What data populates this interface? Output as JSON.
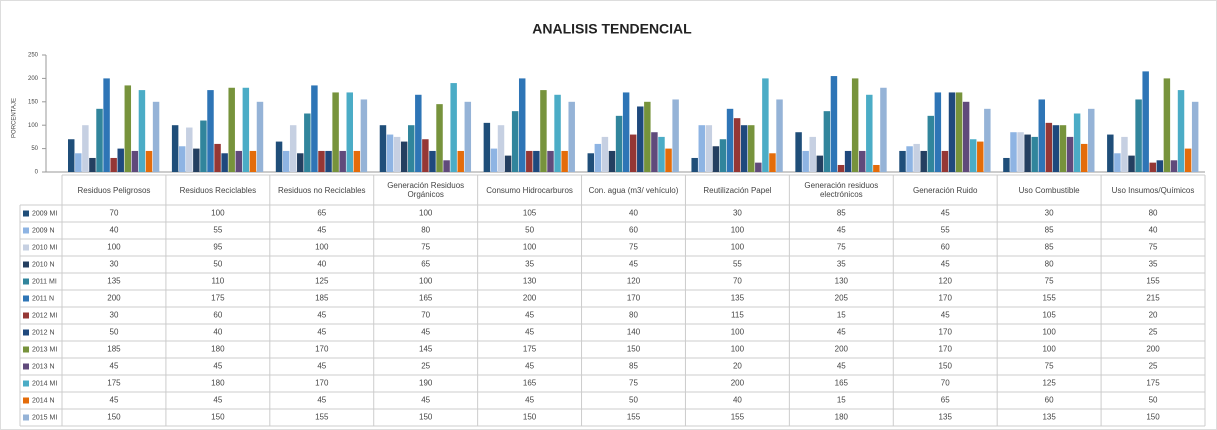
{
  "chart_data": {
    "type": "bar",
    "title": "ANALISIS TENDENCIAL",
    "y_label": "PORCENTAJE",
    "categories": [
      "Residuos Peligrosos",
      "Residuos Reciclables",
      "Residuos no Reciclables",
      "Generación Residuos Orgánicos",
      "Consumo Hidrocarburos",
      "Con. agua (m3/ vehículo)",
      "Reutilización Papel",
      "Generación residuos electrónicos",
      "Generación Ruido",
      "Uso Combustible",
      "Uso Insumos/Químicos"
    ],
    "ylim": [
      0,
      250
    ],
    "yticks": [
      0,
      50,
      100,
      150,
      200,
      250
    ],
    "grid": false,
    "series": [
      {
        "name": "2009 MI",
        "color": "#1f4e79",
        "values": [
          70,
          100,
          65,
          100,
          105,
          40,
          30,
          85,
          45,
          30,
          80
        ]
      },
      {
        "name": "2009 N",
        "color": "#8eb4e3",
        "values": [
          40,
          55,
          45,
          80,
          50,
          60,
          100,
          45,
          55,
          85,
          40
        ]
      },
      {
        "name": "2010 MI",
        "color": "#c6d0e2",
        "values": [
          100,
          95,
          100,
          75,
          100,
          75,
          100,
          75,
          60,
          85,
          75
        ]
      },
      {
        "name": "2010 N",
        "color": "#243f60",
        "values": [
          30,
          50,
          40,
          65,
          35,
          45,
          55,
          35,
          45,
          80,
          35
        ]
      },
      {
        "name": "2011 MI",
        "color": "#31859c",
        "values": [
          135,
          110,
          125,
          100,
          130,
          120,
          70,
          130,
          120,
          75,
          155
        ]
      },
      {
        "name": "2011 N",
        "color": "#2e75b6",
        "values": [
          200,
          175,
          185,
          165,
          200,
          170,
          135,
          205,
          170,
          155,
          215
        ]
      },
      {
        "name": "2012 MI",
        "color": "#953735",
        "values": [
          30,
          60,
          45,
          70,
          45,
          80,
          115,
          15,
          45,
          105,
          20
        ]
      },
      {
        "name": "2012 N",
        "color": "#1f497d",
        "values": [
          50,
          40,
          45,
          45,
          45,
          140,
          100,
          45,
          170,
          100,
          25
        ]
      },
      {
        "name": "2013 MI",
        "color": "#77933c",
        "values": [
          185,
          180,
          170,
          145,
          175,
          150,
          100,
          200,
          170,
          100,
          200
        ]
      },
      {
        "name": "2013 N",
        "color": "#604a7b",
        "values": [
          45,
          45,
          45,
          25,
          45,
          85,
          20,
          45,
          150,
          75,
          25
        ]
      },
      {
        "name": "2014 MI",
        "color": "#4bacc6",
        "values": [
          175,
          180,
          170,
          190,
          165,
          75,
          200,
          165,
          70,
          125,
          175
        ]
      },
      {
        "name": "2014 N",
        "color": "#e46c0a",
        "values": [
          45,
          45,
          45,
          45,
          45,
          50,
          40,
          15,
          65,
          60,
          50
        ]
      },
      {
        "name": "2015 MI",
        "color": "#95b3d7",
        "values": [
          150,
          150,
          155,
          150,
          150,
          155,
          155,
          180,
          135,
          135,
          150
        ]
      }
    ]
  }
}
